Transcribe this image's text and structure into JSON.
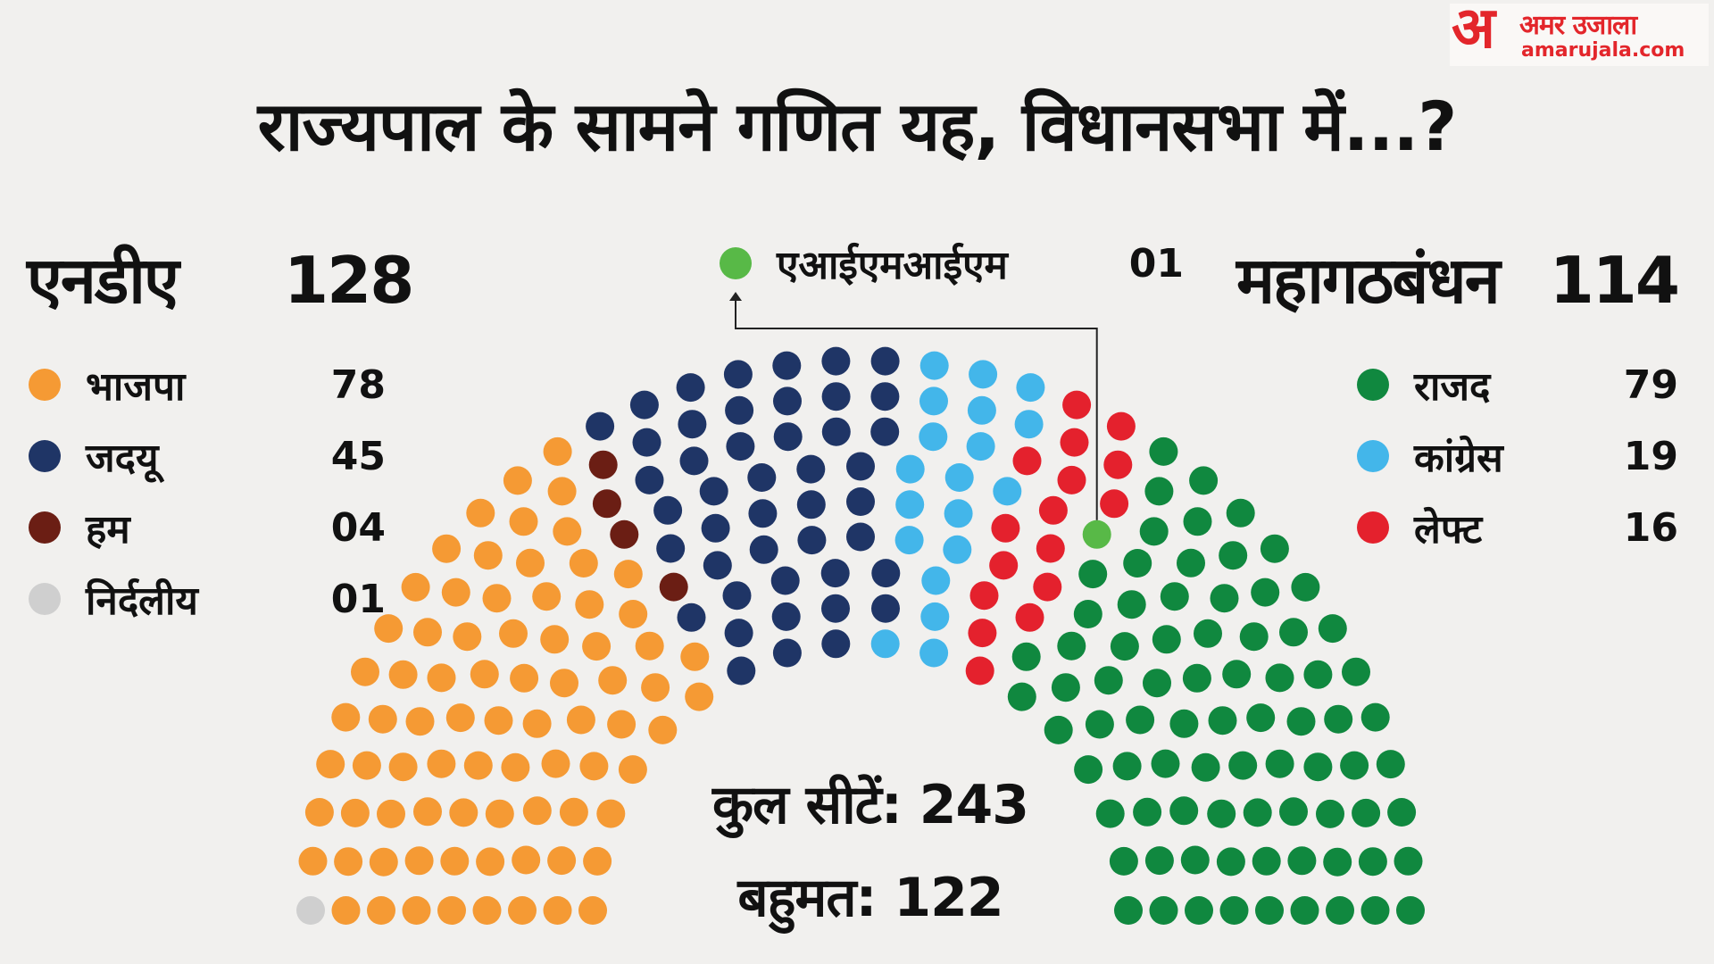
{
  "brand": {
    "mark": "अ",
    "name_hindi": "अमर उजाला",
    "url": "amarujala.com",
    "color": "#e3262b"
  },
  "title": "राज्यपाल के सामने गणित यह, विधानसभा में...?",
  "chart_data": {
    "type": "hemicycle",
    "total_seats": 243,
    "majority": 122,
    "total_label": "कुल सीटें: 243",
    "majority_label": "बहुमत: 122",
    "blocs": [
      {
        "name": "एनडीए",
        "total": 128,
        "parties": [
          {
            "name": "भाजपा",
            "seats": 78,
            "label": "78",
            "color": "#f59a34"
          },
          {
            "name": "जदयू",
            "seats": 45,
            "label": "45",
            "color": "#1f3566"
          },
          {
            "name": "हम",
            "seats": 4,
            "label": "04",
            "color": "#6b1e14"
          },
          {
            "name": "निर्दलीय",
            "seats": 1,
            "label": "01",
            "color": "#cfcfcf"
          }
        ]
      },
      {
        "name": "महागठबंधन",
        "total": 114,
        "parties": [
          {
            "name": "राजद",
            "seats": 79,
            "label": "79",
            "color": "#10883f"
          },
          {
            "name": "कांग्रेस",
            "seats": 19,
            "label": "19",
            "color": "#43b6ea"
          },
          {
            "name": "लेफ्ट",
            "seats": 16,
            "label": "16",
            "color": "#e4212d"
          }
        ]
      }
    ],
    "other": {
      "name": "एआईएमआईएम",
      "seats": 1,
      "label": "01",
      "color": "#58b947"
    }
  }
}
